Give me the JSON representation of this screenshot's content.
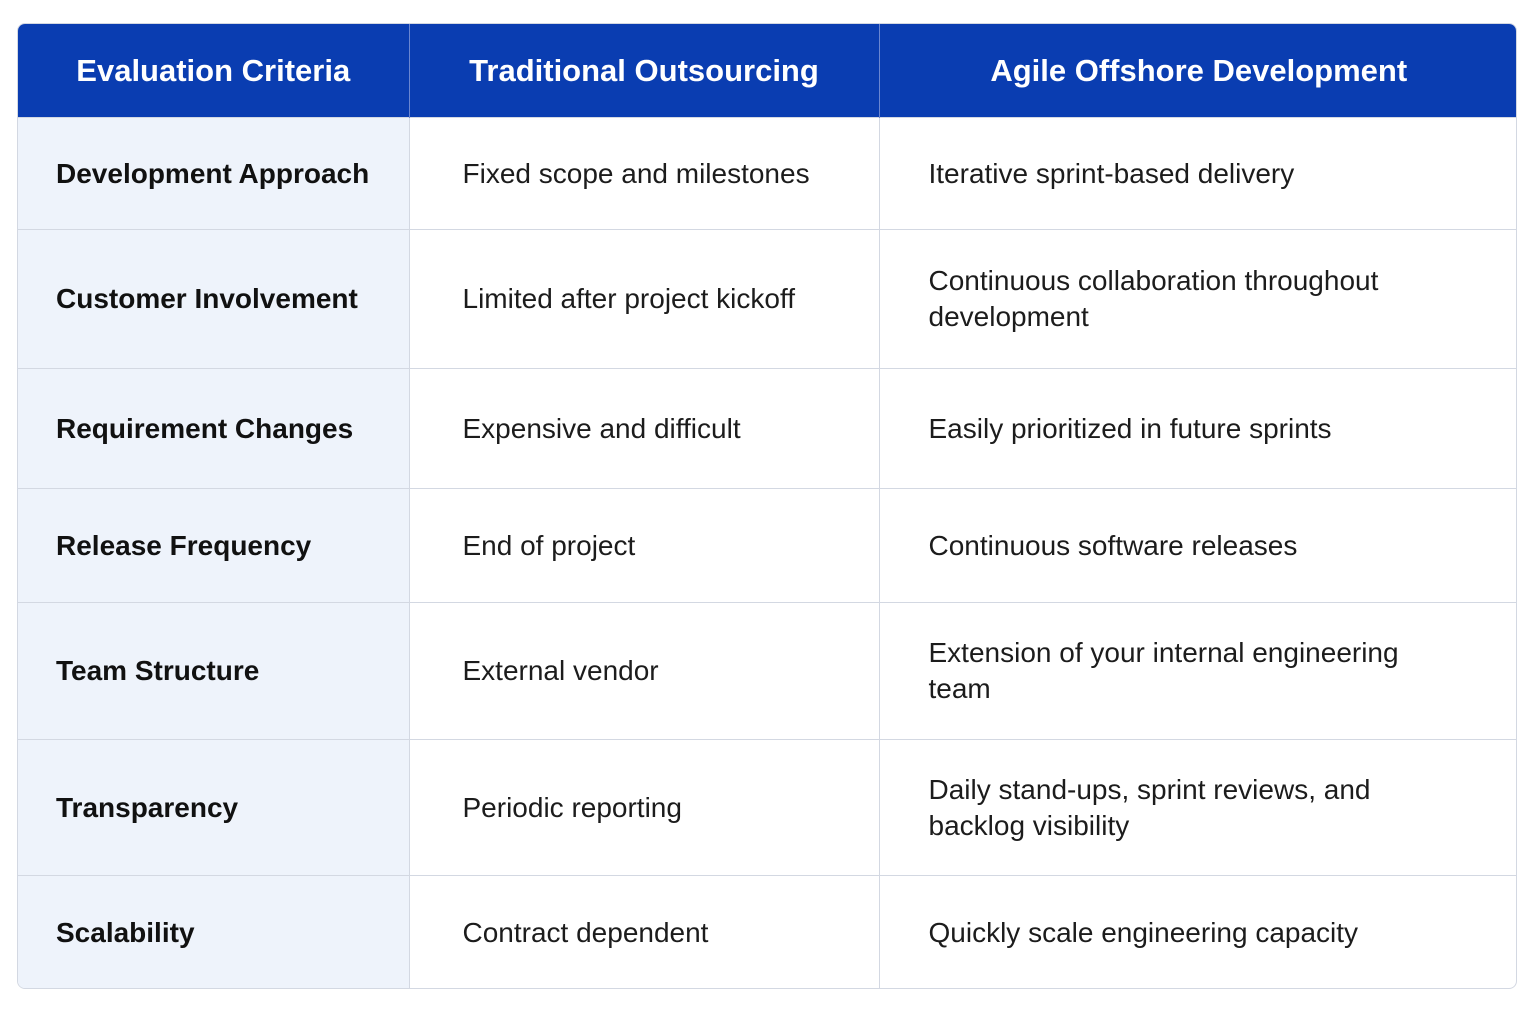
{
  "table": {
    "headers": [
      "Evaluation Criteria",
      "Traditional Outsourcing",
      "Agile Offshore Development"
    ],
    "rows": [
      {
        "criteria": "Development Approach",
        "traditional": "Fixed scope and milestones",
        "agile": "Iterative sprint-based delivery"
      },
      {
        "criteria": "Customer Involvement",
        "traditional": "Limited after project kickoff",
        "agile": "Continuous collaboration throughout development"
      },
      {
        "criteria": "Requirement Changes",
        "traditional": "Expensive and difficult",
        "agile": "Easily prioritized in future sprints"
      },
      {
        "criteria": "Release Frequency",
        "traditional": "End of project",
        "agile": "Continuous software releases"
      },
      {
        "criteria": "Team Structure",
        "traditional": "External vendor",
        "agile": "Extension of your internal engineering team"
      },
      {
        "criteria": "Transparency",
        "traditional": "Periodic reporting",
        "agile": "Daily stand-ups, sprint reviews, and backlog visibility"
      },
      {
        "criteria": "Scalability",
        "traditional": "Contract dependent",
        "agile": "Quickly scale engineering capacity"
      }
    ]
  },
  "colors": {
    "header_bg": "#0a3db1",
    "header_text": "#ffffff",
    "criteria_bg": "#eef3fb",
    "border": "#d3d8e2"
  }
}
